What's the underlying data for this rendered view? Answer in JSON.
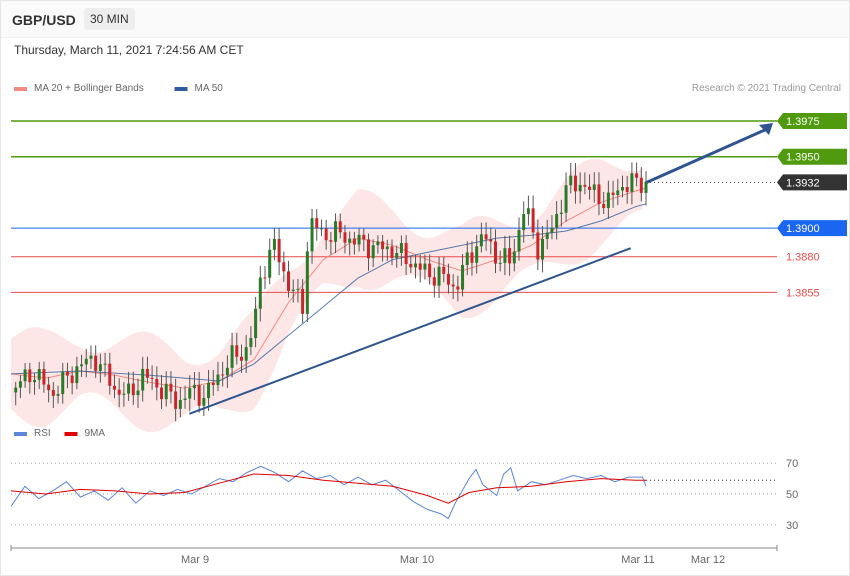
{
  "header": {
    "symbol": "GBP/USD",
    "timeframe": "30 MIN",
    "datetime": "Thursday, March 11, 2021 7:24:56 AM CET"
  },
  "colors": {
    "ma20": "#f28a82",
    "ma50": "#2e5e9e",
    "bollinger_fill": "#fde3e3",
    "candle_up": "#2a7a2a",
    "candle_down": "#c8262a",
    "resistance": "#4f9a0e",
    "pivot": "#1a66f0",
    "support": "#e84c4c",
    "last_price": "#333333",
    "trend": "#2e5590",
    "rsi": "#5c86d6",
    "rsi_ma": "#e00000"
  },
  "chart_data": [
    {
      "type": "candlestick",
      "legend": [
        {
          "name": "MA 20 + Bollinger Bands",
          "color": "#f28a82"
        },
        {
          "name": "MA 50",
          "color": "#2e5e9e"
        }
      ],
      "credit": "Research © 2021 Trading Central",
      "x_ticks": [
        "Mar 9",
        "Mar 10",
        "Mar 11",
        "Mar 12"
      ],
      "ylim": [
        1.3765,
        1.3989
      ],
      "levels": [
        {
          "value": 1.3975,
          "label": "1.3975",
          "role": "resistance"
        },
        {
          "value": 1.395,
          "label": "1.3950",
          "role": "resistance"
        },
        {
          "value": 1.3932,
          "label": "1.3932",
          "role": "last_price"
        },
        {
          "value": 1.39,
          "label": "1.3900",
          "role": "pivot"
        },
        {
          "value": 1.388,
          "label": "1.3880",
          "role": "support"
        },
        {
          "value": 1.3855,
          "label": "1.3855",
          "role": "support"
        }
      ],
      "trendline": {
        "from": [
          0.257,
          1.377
        ],
        "to": [
          0.893,
          1.3886
        ]
      },
      "projection_arrow": {
        "from": [
          0.916,
          1.3932
        ],
        "to": [
          1.0,
          1.3975
        ]
      },
      "price_path": [
        [
          0.0,
          1.3785
        ],
        [
          0.03,
          1.38
        ],
        [
          0.06,
          1.3784
        ],
        [
          0.09,
          1.38
        ],
        [
          0.12,
          1.381
        ],
        [
          0.15,
          1.3787
        ],
        [
          0.17,
          1.3783
        ],
        [
          0.19,
          1.3797
        ],
        [
          0.21,
          1.379
        ],
        [
          0.23,
          1.3782
        ],
        [
          0.24,
          1.3778
        ],
        [
          0.26,
          1.3786
        ],
        [
          0.28,
          1.3782
        ],
        [
          0.3,
          1.3798
        ],
        [
          0.32,
          1.381
        ],
        [
          0.34,
          1.3815
        ],
        [
          0.35,
          1.383
        ],
        [
          0.36,
          1.3868
        ],
        [
          0.38,
          1.3888
        ],
        [
          0.4,
          1.386
        ],
        [
          0.42,
          1.3845
        ],
        [
          0.43,
          1.3905
        ],
        [
          0.45,
          1.3895
        ],
        [
          0.47,
          1.3897
        ],
        [
          0.49,
          1.3892
        ],
        [
          0.52,
          1.3887
        ],
        [
          0.55,
          1.3885
        ],
        [
          0.58,
          1.3875
        ],
        [
          0.6,
          1.3868
        ],
        [
          0.62,
          1.3867
        ],
        [
          0.64,
          1.3858
        ],
        [
          0.66,
          1.388
        ],
        [
          0.68,
          1.3895
        ],
        [
          0.7,
          1.388
        ],
        [
          0.72,
          1.3876
        ],
        [
          0.74,
          1.3915
        ],
        [
          0.76,
          1.3885
        ],
        [
          0.78,
          1.39
        ],
        [
          0.8,
          1.3928
        ],
        [
          0.82,
          1.3932
        ],
        [
          0.84,
          1.3924
        ],
        [
          0.86,
          1.3918
        ],
        [
          0.88,
          1.393
        ],
        [
          0.9,
          1.3932
        ],
        [
          0.915,
          1.3932
        ]
      ],
      "ma20_path": [
        [
          0.0,
          1.3798
        ],
        [
          0.05,
          1.3795
        ],
        [
          0.1,
          1.38
        ],
        [
          0.15,
          1.3797
        ],
        [
          0.2,
          1.3792
        ],
        [
          0.25,
          1.3788
        ],
        [
          0.3,
          1.3793
        ],
        [
          0.35,
          1.3808
        ],
        [
          0.4,
          1.3848
        ],
        [
          0.45,
          1.3878
        ],
        [
          0.5,
          1.3893
        ],
        [
          0.55,
          1.3888
        ],
        [
          0.6,
          1.3878
        ],
        [
          0.65,
          1.387
        ],
        [
          0.7,
          1.3878
        ],
        [
          0.75,
          1.3888
        ],
        [
          0.8,
          1.3905
        ],
        [
          0.85,
          1.3918
        ],
        [
          0.9,
          1.3926
        ],
        [
          0.915,
          1.3928
        ]
      ],
      "ma50_path": [
        [
          0.0,
          1.3798
        ],
        [
          0.1,
          1.38
        ],
        [
          0.2,
          1.3797
        ],
        [
          0.3,
          1.3793
        ],
        [
          0.35,
          1.3805
        ],
        [
          0.4,
          1.3825
        ],
        [
          0.45,
          1.3845
        ],
        [
          0.5,
          1.3865
        ],
        [
          0.55,
          1.3878
        ],
        [
          0.6,
          1.3883
        ],
        [
          0.65,
          1.3888
        ],
        [
          0.7,
          1.3893
        ],
        [
          0.75,
          1.3895
        ],
        [
          0.8,
          1.3898
        ],
        [
          0.85,
          1.3905
        ],
        [
          0.9,
          1.3915
        ],
        [
          0.915,
          1.3917
        ]
      ],
      "bollinger_band": {
        "width": 0.0035
      }
    },
    {
      "type": "line",
      "legend": [
        {
          "name": "RSI",
          "color": "#5c86d6"
        },
        {
          "name": "9MA",
          "color": "#e00000"
        }
      ],
      "ylim": [
        24,
        76
      ],
      "y_ticks": [
        70,
        50,
        30
      ],
      "rsi_path": [
        [
          0.0,
          42
        ],
        [
          0.02,
          55
        ],
        [
          0.04,
          47
        ],
        [
          0.06,
          52
        ],
        [
          0.08,
          58
        ],
        [
          0.1,
          48
        ],
        [
          0.12,
          52
        ],
        [
          0.14,
          46
        ],
        [
          0.16,
          54
        ],
        [
          0.18,
          44
        ],
        [
          0.2,
          52
        ],
        [
          0.22,
          49
        ],
        [
          0.24,
          53
        ],
        [
          0.26,
          50
        ],
        [
          0.28,
          55
        ],
        [
          0.3,
          60
        ],
        [
          0.32,
          58
        ],
        [
          0.34,
          64
        ],
        [
          0.36,
          68
        ],
        [
          0.38,
          64
        ],
        [
          0.4,
          58
        ],
        [
          0.42,
          65
        ],
        [
          0.44,
          60
        ],
        [
          0.46,
          62
        ],
        [
          0.48,
          56
        ],
        [
          0.5,
          61
        ],
        [
          0.52,
          56
        ],
        [
          0.54,
          59
        ],
        [
          0.56,
          52
        ],
        [
          0.58,
          45
        ],
        [
          0.6,
          40
        ],
        [
          0.62,
          37
        ],
        [
          0.63,
          34
        ],
        [
          0.64,
          44
        ],
        [
          0.66,
          60
        ],
        [
          0.67,
          66
        ],
        [
          0.68,
          56
        ],
        [
          0.7,
          49
        ],
        [
          0.71,
          63
        ],
        [
          0.72,
          67
        ],
        [
          0.73,
          52
        ],
        [
          0.75,
          58
        ],
        [
          0.77,
          56
        ],
        [
          0.79,
          59
        ],
        [
          0.81,
          62
        ],
        [
          0.83,
          60
        ],
        [
          0.85,
          62
        ],
        [
          0.87,
          58
        ],
        [
          0.89,
          61
        ],
        [
          0.91,
          61
        ],
        [
          0.915,
          55
        ]
      ],
      "rsi_ma_path": [
        [
          0.0,
          52
        ],
        [
          0.05,
          50
        ],
        [
          0.1,
          53
        ],
        [
          0.15,
          52
        ],
        [
          0.2,
          50
        ],
        [
          0.25,
          51
        ],
        [
          0.3,
          57
        ],
        [
          0.35,
          63
        ],
        [
          0.4,
          62
        ],
        [
          0.45,
          59
        ],
        [
          0.5,
          57
        ],
        [
          0.55,
          55
        ],
        [
          0.6,
          49
        ],
        [
          0.63,
          44
        ],
        [
          0.66,
          51
        ],
        [
          0.7,
          54
        ],
        [
          0.75,
          55
        ],
        [
          0.8,
          58
        ],
        [
          0.85,
          60
        ],
        [
          0.9,
          59
        ],
        [
          0.915,
          59
        ]
      ]
    }
  ]
}
